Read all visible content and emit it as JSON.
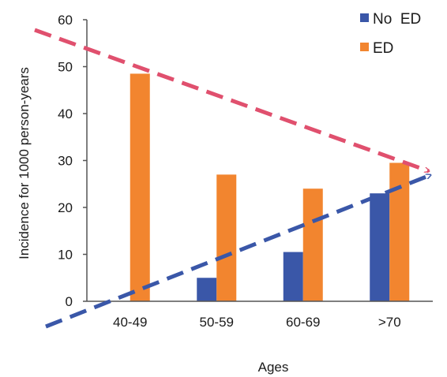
{
  "chart_data": {
    "type": "bar",
    "title": "",
    "xlabel": "Ages",
    "ylabel": "Incidence for 1000 person-years",
    "categories": [
      "40-49",
      "50-59",
      "60-69",
      ">70"
    ],
    "series": [
      {
        "name": "No  ED",
        "values": [
          0,
          5,
          10.5,
          23
        ],
        "color": "#3a57a8"
      },
      {
        "name": "ED",
        "values": [
          48.5,
          27,
          24,
          29.5
        ],
        "color": "#f2852f"
      }
    ],
    "ylim": [
      0,
      60
    ],
    "yticks": [
      "0",
      "10",
      "20",
      "30",
      "40",
      "50",
      "60"
    ],
    "grid": false,
    "legend_position": "top-right",
    "annotations": [
      {
        "kind": "dashed-trend-arrow",
        "direction": "decreasing",
        "color": "#e0506e"
      },
      {
        "kind": "dashed-trend-arrow",
        "direction": "increasing",
        "color": "#3a57a8"
      }
    ]
  }
}
